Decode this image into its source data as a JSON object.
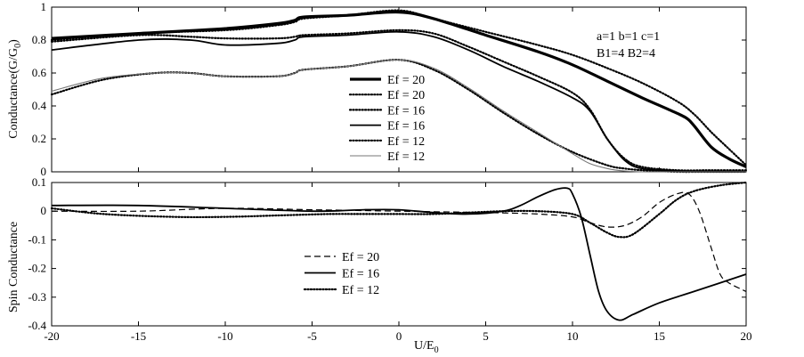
{
  "chart_data": [
    {
      "type": "line",
      "ylabel": "Conductance(G/G",
      "ylabel_sub": "0",
      "ylabel_close": ")",
      "xlim": [
        -20,
        20
      ],
      "ylim": [
        0,
        1
      ],
      "yticks": [
        0,
        0.2,
        0.4,
        0.6,
        0.8,
        1
      ],
      "ytick_labels": [
        "0",
        "0.2",
        "0.4",
        "0.6",
        "0.8",
        "1"
      ],
      "annotation_line1": "a=1  b=1  c=1",
      "annotation_line2": "B1=4  B2=4",
      "legend_position": "center",
      "series": [
        {
          "name": "Ef = 20",
          "style": "thick-solid",
          "color": "#000000",
          "x": [
            -20,
            -15,
            -10,
            -7,
            -6,
            -5.5,
            -3,
            0,
            2,
            5,
            8,
            10,
            12,
            14,
            15.5,
            16.5,
            17,
            18,
            19,
            20
          ],
          "y": [
            0.81,
            0.84,
            0.87,
            0.9,
            0.92,
            0.94,
            0.95,
            0.97,
            0.93,
            0.83,
            0.73,
            0.65,
            0.55,
            0.45,
            0.38,
            0.33,
            0.28,
            0.15,
            0.08,
            0.03
          ]
        },
        {
          "name": "Ef = 20",
          "style": "dotted",
          "color": "#000000",
          "x": [
            -20,
            -15,
            -10,
            -7,
            -6,
            -5.5,
            -3,
            0,
            2,
            5,
            8,
            10,
            12,
            14,
            16,
            17,
            18,
            19,
            20
          ],
          "y": [
            0.8,
            0.84,
            0.86,
            0.89,
            0.91,
            0.93,
            0.95,
            0.98,
            0.93,
            0.85,
            0.77,
            0.71,
            0.63,
            0.54,
            0.43,
            0.35,
            0.24,
            0.14,
            0.04
          ]
        },
        {
          "name": "Ef = 16",
          "style": "dotted",
          "color": "#000000",
          "x": [
            -20,
            -15,
            -12,
            -10,
            -7,
            -6,
            -5.5,
            -3,
            0,
            2,
            4,
            6,
            8,
            10,
            11,
            12,
            13,
            14,
            16,
            18,
            20
          ],
          "y": [
            0.79,
            0.83,
            0.82,
            0.81,
            0.81,
            0.82,
            0.83,
            0.84,
            0.86,
            0.84,
            0.76,
            0.67,
            0.58,
            0.48,
            0.38,
            0.2,
            0.08,
            0.03,
            0.01,
            0.01,
            0.01
          ]
        },
        {
          "name": "Ef = 16",
          "style": "solid",
          "color": "#000000",
          "x": [
            -20,
            -15,
            -12,
            -10,
            -7,
            -6,
            -5.5,
            -3,
            0,
            2,
            4,
            6,
            8,
            10,
            11,
            12,
            13,
            14,
            16,
            18,
            20
          ],
          "y": [
            0.74,
            0.8,
            0.8,
            0.77,
            0.78,
            0.8,
            0.82,
            0.83,
            0.85,
            0.82,
            0.74,
            0.64,
            0.55,
            0.45,
            0.37,
            0.2,
            0.07,
            0.02,
            0.005,
            0.0,
            0.0
          ]
        },
        {
          "name": "Ef = 12",
          "style": "dotted",
          "color": "#000000",
          "x": [
            -20,
            -17,
            -14,
            -12,
            -10,
            -7,
            -6,
            -5.5,
            -3,
            0,
            2,
            4,
            6,
            8,
            10,
            12,
            13,
            14,
            15,
            16,
            18,
            20
          ],
          "y": [
            0.47,
            0.56,
            0.6,
            0.6,
            0.58,
            0.58,
            0.6,
            0.62,
            0.64,
            0.68,
            0.62,
            0.5,
            0.36,
            0.23,
            0.12,
            0.04,
            0.02,
            0.01,
            0.005,
            0.0,
            0.0,
            0.0
          ]
        },
        {
          "name": "Ef = 12",
          "style": "thin-gray",
          "color": "#777777",
          "x": [
            -20,
            -17,
            -14,
            -12,
            -10,
            -7,
            -6,
            -5.5,
            -3,
            0,
            2,
            4,
            6,
            8,
            10,
            11,
            12,
            13,
            14,
            16,
            18,
            20
          ],
          "y": [
            0.49,
            0.57,
            0.6,
            0.6,
            0.58,
            0.58,
            0.6,
            0.62,
            0.64,
            0.68,
            0.63,
            0.51,
            0.37,
            0.24,
            0.11,
            0.05,
            0.02,
            0.005,
            0.0,
            0.0,
            0.0,
            0.0
          ]
        }
      ]
    },
    {
      "type": "line",
      "xlabel": "U/E",
      "xlabel_sub": "0",
      "ylabel": "Spin Conductance",
      "xlim": [
        -20,
        20
      ],
      "ylim": [
        -0.4,
        0.1
      ],
      "xticks": [
        -20,
        -15,
        -10,
        -5,
        0,
        5,
        10,
        15,
        20
      ],
      "xtick_labels": [
        "-20",
        "-15",
        "-10",
        "-5",
        "0",
        "5",
        "10",
        "15",
        "20"
      ],
      "yticks": [
        -0.4,
        -0.3,
        -0.2,
        -0.1,
        0,
        0.1
      ],
      "ytick_labels": [
        "-0.4",
        "-0.3",
        "-0.2",
        "-0.1",
        "0",
        "0.1"
      ],
      "legend_position": "bottom-center",
      "series": [
        {
          "name": "Ef = 20",
          "style": "dashed",
          "color": "#000000",
          "x": [
            -20,
            -15,
            -10,
            -5,
            0,
            5,
            8,
            10,
            11,
            12,
            13,
            14,
            15,
            16,
            16.7,
            17.3,
            18,
            18.5,
            19,
            20
          ],
          "y": [
            0.0,
            0.0,
            0.01,
            0.005,
            0.0,
            -0.005,
            -0.01,
            -0.02,
            -0.04,
            -0.055,
            -0.05,
            -0.02,
            0.03,
            0.06,
            0.06,
            0.0,
            -0.13,
            -0.22,
            -0.25,
            -0.28
          ]
        },
        {
          "name": "Ef = 16",
          "style": "solid",
          "color": "#000000",
          "x": [
            -20,
            -15,
            -10,
            -5,
            -2,
            0,
            2,
            4,
            6,
            7,
            8,
            9,
            9.7,
            10,
            10.5,
            11,
            11.5,
            12,
            12.7,
            13.5,
            15,
            17,
            20
          ],
          "y": [
            0.02,
            0.02,
            0.01,
            0.0,
            0.005,
            0.005,
            -0.005,
            -0.01,
            0.0,
            0.02,
            0.05,
            0.075,
            0.08,
            0.06,
            -0.02,
            -0.15,
            -0.28,
            -0.35,
            -0.38,
            -0.36,
            -0.32,
            -0.28,
            -0.22
          ]
        },
        {
          "name": "Ef = 12",
          "style": "dotted",
          "color": "#000000",
          "x": [
            -20,
            -17,
            -13,
            -10,
            -7,
            -4,
            -2,
            0,
            2,
            4,
            6,
            8,
            10,
            11,
            12,
            12.7,
            13.5,
            15,
            16,
            17,
            18.5,
            20
          ],
          "y": [
            0.01,
            -0.01,
            -0.02,
            -0.02,
            -0.015,
            -0.01,
            -0.01,
            -0.01,
            -0.01,
            -0.005,
            0.0,
            0.0,
            -0.01,
            -0.04,
            -0.075,
            -0.09,
            -0.08,
            -0.01,
            0.04,
            0.07,
            0.09,
            0.1
          ]
        }
      ]
    }
  ]
}
